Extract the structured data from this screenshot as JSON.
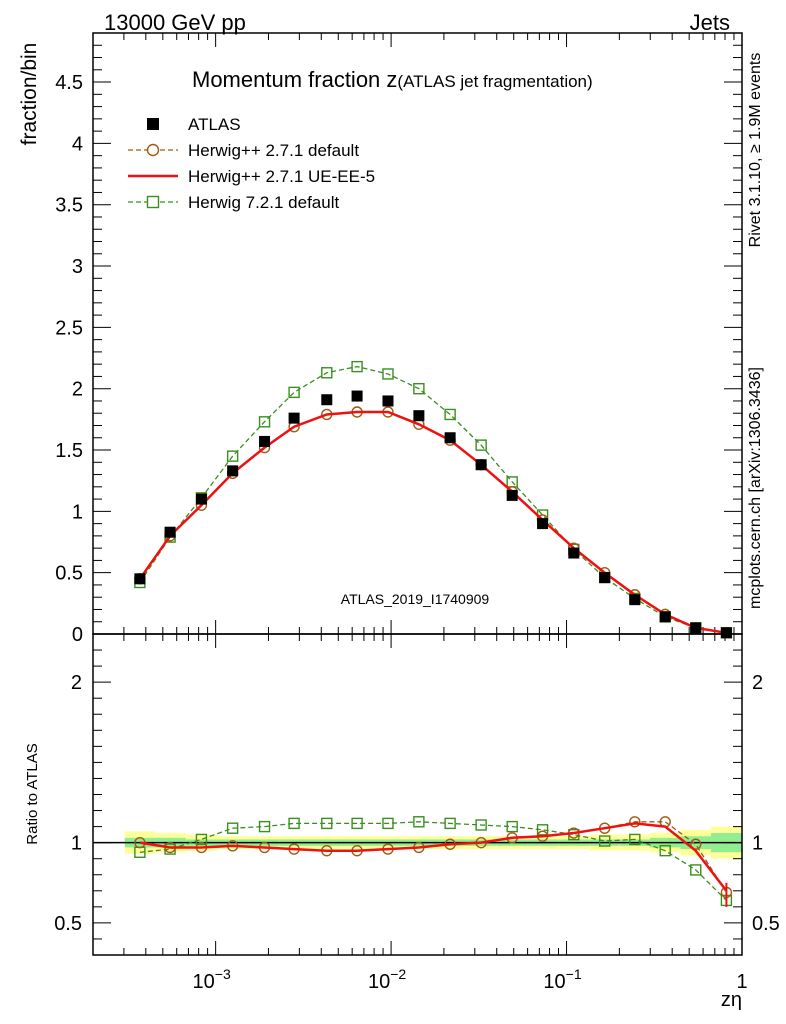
{
  "header": {
    "left": "13000 GeV pp",
    "right": "Jets"
  },
  "side_labels": {
    "rivet": "Rivet 3.1.10, ≥ 1.9M events",
    "mcplots": "mcplots.cern.ch [arXiv:1306.3436]"
  },
  "chart_data": [
    {
      "type": "scatter",
      "panel": "main",
      "title": "Momentum fraction z",
      "title_suffix": "(ATLAS jet fragmentation)",
      "ylabel": "fraction/bin",
      "watermark": "ATLAS_2019_I1740909",
      "xscale": "log",
      "xlim": [
        0.0002,
        1
      ],
      "ylim": [
        0,
        4.9
      ],
      "y_ticks": [
        "0",
        "0.5",
        "1",
        "1.5",
        "2",
        "2.5",
        "3",
        "3.5",
        "4",
        "4.5"
      ],
      "legend_position": "top-left",
      "x": [
        0.00037,
        0.00055,
        0.00083,
        0.00125,
        0.0019,
        0.0028,
        0.0043,
        0.0064,
        0.0096,
        0.0144,
        0.0217,
        0.0326,
        0.049,
        0.073,
        0.11,
        0.165,
        0.245,
        0.365,
        0.545,
        0.815
      ],
      "series": [
        {
          "name": "ATLAS",
          "style": "data",
          "color": "#000000",
          "values": [
            0.45,
            0.83,
            1.1,
            1.33,
            1.57,
            1.76,
            1.91,
            1.94,
            1.9,
            1.78,
            1.6,
            1.38,
            1.13,
            0.9,
            0.66,
            0.46,
            0.28,
            0.14,
            0.05,
            0.01
          ]
        },
        {
          "name": "Herwig++ 2.7.1 default",
          "style": "circle-dashed",
          "color": "#a05a10",
          "values": [
            0.45,
            0.8,
            1.05,
            1.31,
            1.52,
            1.69,
            1.79,
            1.81,
            1.81,
            1.71,
            1.58,
            1.38,
            1.16,
            0.93,
            0.7,
            0.5,
            0.32,
            0.16,
            0.05,
            0.01
          ]
        },
        {
          "name": "Herwig++ 2.7.1 UE-EE-5",
          "style": "line",
          "color": "#ee1111",
          "values": [
            0.45,
            0.8,
            1.05,
            1.31,
            1.52,
            1.69,
            1.79,
            1.81,
            1.81,
            1.71,
            1.58,
            1.38,
            1.16,
            0.93,
            0.7,
            0.5,
            0.32,
            0.16,
            0.05,
            0.01
          ]
        },
        {
          "name": "Herwig 7.2.1 default",
          "style": "square-dashed",
          "color": "#3a8f1f",
          "values": [
            0.42,
            0.79,
            1.11,
            1.45,
            1.73,
            1.97,
            2.13,
            2.18,
            2.12,
            2.0,
            1.79,
            1.54,
            1.24,
            0.97,
            0.69,
            0.46,
            0.29,
            0.14,
            0.05,
            0.01
          ]
        }
      ]
    },
    {
      "type": "line",
      "panel": "ratio",
      "ylabel": "Ratio to ATLAS",
      "xlabel": "zη",
      "xscale": "log",
      "xlim": [
        0.0002,
        1
      ],
      "ylim": [
        0.3,
        2.3
      ],
      "y_ticks": [
        "0.5",
        "1",
        "2"
      ],
      "x_ticks": [
        "10^-3",
        "10^-2",
        "10^-1",
        "1"
      ],
      "band_inner": [
        0.03,
        0.03,
        0.02,
        0.02,
        0.02,
        0.02,
        0.02,
        0.02,
        0.02,
        0.02,
        0.02,
        0.02,
        0.02,
        0.02,
        0.02,
        0.02,
        0.02,
        0.03,
        0.04,
        0.06
      ],
      "band_outer": [
        0.07,
        0.06,
        0.05,
        0.04,
        0.04,
        0.04,
        0.04,
        0.04,
        0.04,
        0.04,
        0.04,
        0.04,
        0.04,
        0.04,
        0.04,
        0.05,
        0.05,
        0.06,
        0.08,
        0.1
      ],
      "series": [
        {
          "name": "Herwig++ 2.7.1 default",
          "style": "circle-dashed",
          "color": "#a05a10",
          "values": [
            1.0,
            0.97,
            0.97,
            0.98,
            0.97,
            0.96,
            0.95,
            0.95,
            0.96,
            0.97,
            0.99,
            1.0,
            1.03,
            1.04,
            1.06,
            1.09,
            1.13,
            1.13,
            0.99,
            0.69
          ]
        },
        {
          "name": "Herwig++ 2.7.1 UE-EE-5",
          "style": "line",
          "color": "#ee1111",
          "values": [
            1.0,
            0.97,
            0.97,
            0.98,
            0.97,
            0.96,
            0.95,
            0.95,
            0.96,
            0.97,
            0.99,
            1.0,
            1.03,
            1.04,
            1.06,
            1.09,
            1.12,
            1.1,
            0.95,
            0.7
          ]
        },
        {
          "name": "Herwig 7.2.1 default",
          "style": "square-dashed",
          "color": "#3a8f1f",
          "values": [
            0.94,
            0.96,
            1.02,
            1.09,
            1.1,
            1.12,
            1.12,
            1.12,
            1.12,
            1.13,
            1.12,
            1.11,
            1.1,
            1.08,
            1.05,
            1.01,
            1.02,
            0.95,
            0.83,
            0.64
          ]
        }
      ]
    }
  ]
}
